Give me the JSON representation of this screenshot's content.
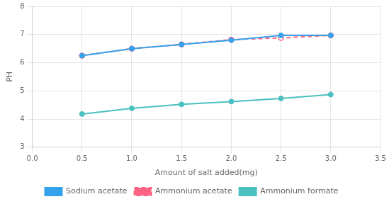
{
  "chart_data": {
    "type": "line",
    "x_label": "Amount of salt added(mg)",
    "y_label": "PH",
    "x": [
      0.5,
      1.0,
      1.5,
      2.0,
      2.5,
      3.0
    ],
    "series": [
      {
        "name": "Sodium acetate",
        "values": [
          6.25,
          6.5,
          6.65,
          6.8,
          6.97,
          6.97
        ],
        "line_style": "solid",
        "marker": "circle"
      },
      {
        "name": "Ammonium acetate",
        "values": [
          6.25,
          6.5,
          6.65,
          6.82,
          6.88,
          6.97
        ],
        "line_style": "dashed",
        "marker": "open_circle"
      },
      {
        "name": "Ammonium formate",
        "values": [
          4.18,
          4.38,
          4.52,
          4.62,
          4.73,
          4.87
        ],
        "line_style": "solid",
        "marker": "circle"
      }
    ],
    "xlim": [
      0,
      3.5
    ],
    "ylim": [
      3,
      8
    ],
    "xticks": [
      {
        "value": 0,
        "label": "0.0"
      },
      0.5,
      {
        "value": 1,
        "label": "1.0"
      },
      1.5,
      {
        "value": 2,
        "label": "2.0"
      },
      2.5,
      {
        "value": 3,
        "label": "3.0"
      },
      3.5
    ],
    "yticks": [
      3,
      4,
      5,
      6,
      7,
      8
    ],
    "grid": true,
    "legend": "bottom"
  }
}
